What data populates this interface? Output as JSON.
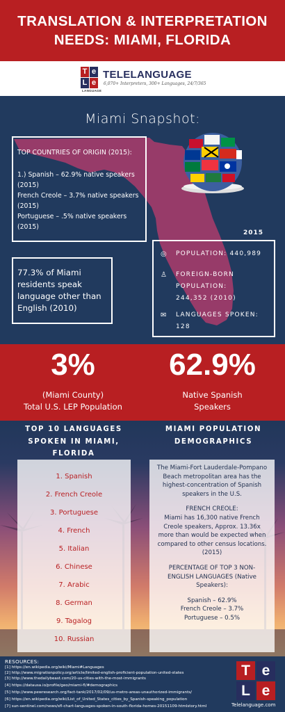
{
  "header": {
    "title": "TRANSLATION & INTERPRETATION NEEDS:  MIAMI, FLORIDA"
  },
  "logo": {
    "tiles": [
      "Te",
      "le",
      "Te",
      "le"
    ],
    "tile_letters": [
      "T",
      "e",
      "L",
      "e"
    ],
    "logo_caption": "LANGUAGE",
    "brand": "TELELANGUAGE",
    "tagline": "6,070+ Interpreters, 300+ Languages, 24/7/365"
  },
  "snapshot": {
    "title": "Miami Snapshot:",
    "countries_title": "TOP COUNTRIES OF ORIGIN (2015):",
    "countries": [
      "1.) Spanish – 62.9% native speakers (2015)",
      "French Creole – 3.7% native speakers (2015)",
      "Portuguese – .5% native speakers (2015)"
    ],
    "other_language": "77.3% of Miami residents speak language other than English (2010)",
    "year": "2015",
    "stats": [
      {
        "icon": "globe-icon",
        "text": "POPULATION: 440,989"
      },
      {
        "icon": "person-icon",
        "text": "FOREIGN-BORN POPULATION: 244,352 (2010)"
      },
      {
        "icon": "speech-icon",
        "text": "LANGUAGES SPOKEN: 128"
      }
    ]
  },
  "band": {
    "left_value": "3%",
    "left_label_1": "(Miami County)",
    "left_label_2": "Total U.S. LEP Population",
    "right_value": "62.9%",
    "right_label_1": "Native Spanish",
    "right_label_2": "Speakers"
  },
  "lower": {
    "left_heading": "TOP 10 LANGUAGES SPOKEN IN MIAMI, FLORIDA",
    "right_heading": "MIAMI POPULATION DEMOGRAPHICS",
    "languages": [
      "1. Spanish",
      "2. French Creole",
      "3. Portuguese",
      "4. French",
      "5. Italian",
      "6. Chinese",
      "7. Arabic",
      "8. German",
      "9. Tagalog",
      "10. Russian"
    ],
    "demo_p1": "The Miami-Fort Lauderdale-Pompano Beach metropolitan area has the highest-concentration of Spanish speakers in the U.S.",
    "demo_h2": "FRENCH CREOLE:",
    "demo_p2": "Miami has 16,300 native French Creole speakers, Approx. 13.36x more than would be expected when compared to other census locations. (2015)",
    "demo_h3": "PERCENTAGE OF TOP 3 NON-ENGLISH LANGUAGES (Native Speakers):",
    "demo_list": [
      "Spanish – 62.9%",
      "French Creole – 3.7%",
      "Portuguese – 0.5%"
    ]
  },
  "resources": {
    "heading": "RESOURCES:",
    "refs": [
      "[1] https://en.wikipedia.org/wiki/Miami#Languages",
      "[2] http://www.migrationpolicy.org/article/limited-english-proficient-population-united-states",
      "[3] http://www.thedailybeast.com/20-us-cities-with-the-most-immigrants",
      "[4] https://datausa.io/profile/geo/miami-fl/#demographics",
      "[5] http://www.pewresearch.org/fact-tank/2017/02/09/us-metro-areas-unauthorized-immigrants/",
      "[6] https://en.wikipedia.org/wiki/List_of_United_States_cities_by_Spanish-speaking_population",
      "[7] sun-sentinel.com/news/sfl-chart-languages-spoken-in-south-florida-homes-20151109-htmlstory.html"
    ],
    "site": "Telelanguage.com"
  },
  "colors": {
    "red": "#b81f22",
    "navy": "#213a5e",
    "tile_blue": "#272e5e",
    "tile_red": "#b81f22",
    "florida": "#a23c6a"
  }
}
